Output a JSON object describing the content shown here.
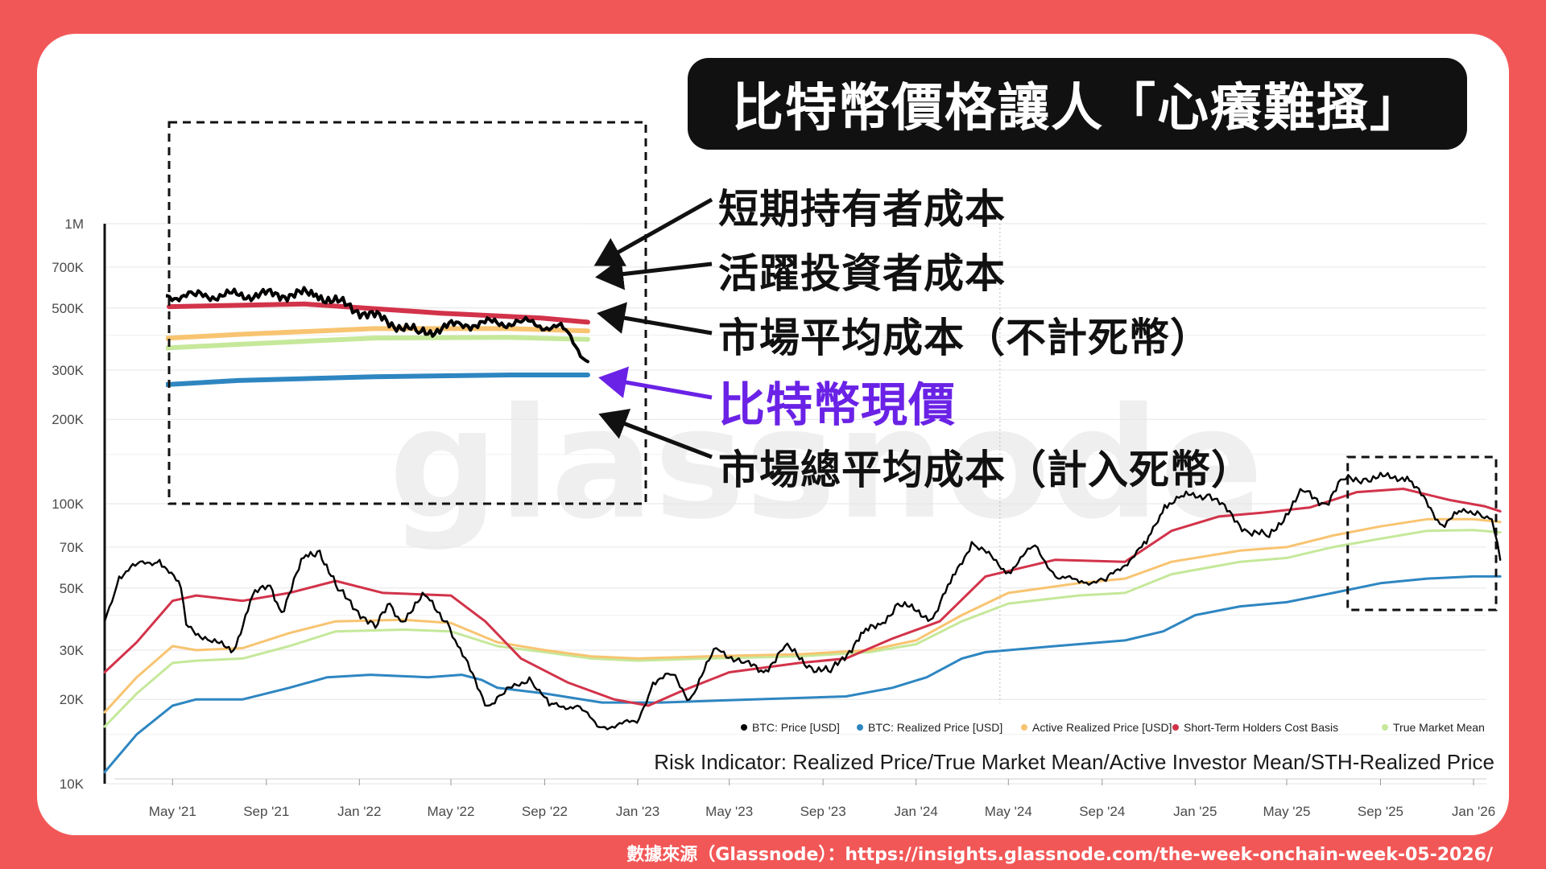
{
  "title": "比特幣價格讓人「心癢難搔」",
  "footer": "數據來源（Glassnode）：https://insights.glassnode.com/the-week-onchain-week-05-2026/",
  "annotations": {
    "sth": "短期持有者成本",
    "active": "活躍投資者成本",
    "true_mean": "市場平均成本（不計死幣）",
    "price": "比特幣現價",
    "realized": "市場總平均成本（計入死幣）"
  },
  "colors": {
    "background": "#f25757",
    "price": "#000000",
    "realized": "#2e86c1",
    "active": "#f8c471",
    "sth": "#d2334a",
    "true_mean": "#c5e89a",
    "annotation_highlight": "#6a22e6"
  },
  "chart_data": {
    "type": "line",
    "subtitle": "Risk Indicator: Realized Price/True Market Mean/Active Investor Mean/STH-Realized Price",
    "watermark": "glassnode",
    "y_scale": "log",
    "ylim": [
      10000,
      1000000
    ],
    "y_ticks": [
      {
        "value": 1000000,
        "label": "1M"
      },
      {
        "value": 700000,
        "label": "700K"
      },
      {
        "value": 500000,
        "label": "500K"
      },
      {
        "value": 300000,
        "label": "300K"
      },
      {
        "value": 200000,
        "label": "200K"
      },
      {
        "value": 100000,
        "label": "100K"
      },
      {
        "value": 70000,
        "label": "70K"
      },
      {
        "value": 50000,
        "label": "50K"
      },
      {
        "value": 30000,
        "label": "30K"
      },
      {
        "value": 20000,
        "label": "20K"
      },
      {
        "value": 10000,
        "label": "10K"
      }
    ],
    "xlim": [
      "2021-02-01",
      "2026-02-08"
    ],
    "x_ticks": [
      {
        "date": "2021-05-01",
        "label": "May '21"
      },
      {
        "date": "2021-09-01",
        "label": "Sep '21"
      },
      {
        "date": "2022-01-01",
        "label": "Jan '22"
      },
      {
        "date": "2022-05-01",
        "label": "May '22"
      },
      {
        "date": "2022-09-01",
        "label": "Sep '22"
      },
      {
        "date": "2023-01-01",
        "label": "Jan '23"
      },
      {
        "date": "2023-05-01",
        "label": "May '23"
      },
      {
        "date": "2023-09-01",
        "label": "Sep '23"
      },
      {
        "date": "2024-01-01",
        "label": "Jan '24"
      },
      {
        "date": "2024-05-01",
        "label": "May '24"
      },
      {
        "date": "2024-09-01",
        "label": "Sep '24"
      },
      {
        "date": "2025-01-01",
        "label": "Jan '25"
      },
      {
        "date": "2025-05-01",
        "label": "May '25"
      },
      {
        "date": "2025-09-01",
        "label": "Sep '25"
      },
      {
        "date": "2026-01-01",
        "label": "Jan '26"
      }
    ],
    "legend_position": "bottom-right",
    "series": [
      {
        "key": "price",
        "name": "BTC: Price [USD]",
        "color": "#000000",
        "points": [
          [
            "2021-02-01",
            38000
          ],
          [
            "2021-02-20",
            55000
          ],
          [
            "2021-03-13",
            60000
          ],
          [
            "2021-04-14",
            63000
          ],
          [
            "2021-05-12",
            50000
          ],
          [
            "2021-05-19",
            37000
          ],
          [
            "2021-06-22",
            32000
          ],
          [
            "2021-07-20",
            30000
          ],
          [
            "2021-08-14",
            47000
          ],
          [
            "2021-09-06",
            51000
          ],
          [
            "2021-09-21",
            41000
          ],
          [
            "2021-10-20",
            64000
          ],
          [
            "2021-11-10",
            68000
          ],
          [
            "2021-12-04",
            49000
          ],
          [
            "2022-01-22",
            36000
          ],
          [
            "2022-02-10",
            44000
          ],
          [
            "2022-02-24",
            38000
          ],
          [
            "2022-03-28",
            47000
          ],
          [
            "2022-04-26",
            38000
          ],
          [
            "2022-05-10",
            31000
          ],
          [
            "2022-06-18",
            19000
          ],
          [
            "2022-07-10",
            21000
          ],
          [
            "2022-08-12",
            24000
          ],
          [
            "2022-09-07",
            19000
          ],
          [
            "2022-10-14",
            19000
          ],
          [
            "2022-11-09",
            16000
          ],
          [
            "2022-12-31",
            16500
          ],
          [
            "2023-01-21",
            23000
          ],
          [
            "2023-02-16",
            24500
          ],
          [
            "2023-03-10",
            20000
          ],
          [
            "2023-04-14",
            30500
          ],
          [
            "2023-05-20",
            27000
          ],
          [
            "2023-06-15",
            25000
          ],
          [
            "2023-07-13",
            31000
          ],
          [
            "2023-08-17",
            26000
          ],
          [
            "2023-09-11",
            25000
          ],
          [
            "2023-10-24",
            34500
          ],
          [
            "2023-11-15",
            37000
          ],
          [
            "2023-12-08",
            44000
          ],
          [
            "2024-01-23",
            39000
          ],
          [
            "2024-02-15",
            52000
          ],
          [
            "2024-03-14",
            73000
          ],
          [
            "2024-05-01",
            57000
          ],
          [
            "2024-06-05",
            71000
          ],
          [
            "2024-07-05",
            54000
          ],
          [
            "2024-08-05",
            53000
          ],
          [
            "2024-09-06",
            53000
          ],
          [
            "2024-10-29",
            72000
          ],
          [
            "2024-11-22",
            99000
          ],
          [
            "2024-12-17",
            106000
          ],
          [
            "2025-01-20",
            108000
          ],
          [
            "2025-03-10",
            80000
          ],
          [
            "2025-04-08",
            76000
          ],
          [
            "2025-05-22",
            111000
          ],
          [
            "2025-06-22",
            100000
          ],
          [
            "2025-07-14",
            122000
          ],
          [
            "2025-08-13",
            123000
          ],
          [
            "2025-10-06",
            125000
          ],
          [
            "2025-11-21",
            84000
          ],
          [
            "2025-12-10",
            92000
          ],
          [
            "2026-01-06",
            94000
          ],
          [
            "2026-01-25",
            88000
          ],
          [
            "2026-02-05",
            63000
          ]
        ]
      },
      {
        "key": "realized",
        "name": "BTC: Realized Price [USD]",
        "color": "#2e86c1",
        "points": [
          [
            "2021-02-01",
            11000
          ],
          [
            "2021-03-15",
            15000
          ],
          [
            "2021-05-01",
            19000
          ],
          [
            "2021-06-01",
            20000
          ],
          [
            "2021-08-01",
            20000
          ],
          [
            "2021-10-01",
            22000
          ],
          [
            "2021-11-20",
            24000
          ],
          [
            "2022-01-15",
            24500
          ],
          [
            "2022-04-01",
            24000
          ],
          [
            "2022-05-15",
            24500
          ],
          [
            "2022-06-10",
            23500
          ],
          [
            "2022-07-01",
            22000
          ],
          [
            "2022-09-01",
            21000
          ],
          [
            "2022-11-15",
            19500
          ],
          [
            "2023-02-01",
            19500
          ],
          [
            "2023-06-01",
            20000
          ],
          [
            "2023-10-01",
            20500
          ],
          [
            "2023-12-01",
            22000
          ],
          [
            "2024-01-15",
            24000
          ],
          [
            "2024-03-01",
            28000
          ],
          [
            "2024-04-01",
            29500
          ],
          [
            "2024-07-01",
            31000
          ],
          [
            "2024-10-01",
            32500
          ],
          [
            "2024-11-20",
            35000
          ],
          [
            "2025-01-01",
            40000
          ],
          [
            "2025-03-01",
            43000
          ],
          [
            "2025-05-01",
            44500
          ],
          [
            "2025-07-01",
            48000
          ],
          [
            "2025-09-01",
            52000
          ],
          [
            "2025-11-01",
            54000
          ],
          [
            "2026-01-01",
            55000
          ],
          [
            "2026-02-05",
            55000
          ]
        ]
      },
      {
        "key": "active",
        "name": "Active Realized Price [USD]",
        "color": "#f8c471",
        "points": [
          [
            "2021-02-01",
            18000
          ],
          [
            "2021-03-15",
            24000
          ],
          [
            "2021-05-01",
            31000
          ],
          [
            "2021-06-01",
            30000
          ],
          [
            "2021-08-01",
            30500
          ],
          [
            "2021-10-01",
            34500
          ],
          [
            "2021-12-01",
            38000
          ],
          [
            "2022-03-01",
            38500
          ],
          [
            "2022-05-01",
            37500
          ],
          [
            "2022-07-01",
            32000
          ],
          [
            "2022-09-01",
            30000
          ],
          [
            "2022-11-01",
            28500
          ],
          [
            "2023-01-01",
            28000
          ],
          [
            "2023-04-01",
            28500
          ],
          [
            "2023-08-01",
            29000
          ],
          [
            "2023-11-01",
            30000
          ],
          [
            "2024-01-01",
            32500
          ],
          [
            "2024-03-01",
            40000
          ],
          [
            "2024-05-01",
            48000
          ],
          [
            "2024-08-01",
            52000
          ],
          [
            "2024-10-01",
            54000
          ],
          [
            "2024-12-01",
            62000
          ],
          [
            "2025-03-01",
            68000
          ],
          [
            "2025-05-01",
            70000
          ],
          [
            "2025-07-01",
            77000
          ],
          [
            "2025-09-01",
            83000
          ],
          [
            "2025-11-01",
            88000
          ],
          [
            "2026-01-01",
            88000
          ],
          [
            "2026-02-05",
            86000
          ]
        ]
      },
      {
        "key": "sth",
        "name": "Short-Term Holders Cost Basis",
        "color": "#d2334a",
        "points": [
          [
            "2021-02-01",
            25000
          ],
          [
            "2021-03-15",
            32000
          ],
          [
            "2021-05-01",
            45000
          ],
          [
            "2021-06-01",
            47000
          ],
          [
            "2021-08-01",
            45000
          ],
          [
            "2021-10-01",
            48000
          ],
          [
            "2021-12-01",
            53000
          ],
          [
            "2022-02-01",
            48000
          ],
          [
            "2022-05-01",
            47000
          ],
          [
            "2022-06-15",
            38000
          ],
          [
            "2022-08-01",
            28000
          ],
          [
            "2022-10-01",
            23000
          ],
          [
            "2022-12-01",
            20000
          ],
          [
            "2023-01-15",
            19000
          ],
          [
            "2023-03-01",
            21500
          ],
          [
            "2023-05-01",
            25000
          ],
          [
            "2023-08-01",
            27000
          ],
          [
            "2023-10-01",
            28000
          ],
          [
            "2023-12-01",
            33000
          ],
          [
            "2024-02-01",
            38000
          ],
          [
            "2024-04-01",
            55000
          ],
          [
            "2024-07-01",
            63000
          ],
          [
            "2024-10-01",
            62000
          ],
          [
            "2024-12-01",
            80000
          ],
          [
            "2025-02-01",
            90000
          ],
          [
            "2025-04-01",
            93000
          ],
          [
            "2025-06-01",
            97000
          ],
          [
            "2025-08-01",
            110000
          ],
          [
            "2025-10-01",
            113000
          ],
          [
            "2025-12-01",
            103000
          ],
          [
            "2026-01-15",
            98000
          ],
          [
            "2026-02-05",
            94000
          ]
        ]
      },
      {
        "key": "true_mean",
        "name": "True Market Mean",
        "color": "#c5e89a",
        "points": [
          [
            "2021-02-01",
            16000
          ],
          [
            "2021-03-15",
            21000
          ],
          [
            "2021-05-01",
            27000
          ],
          [
            "2021-06-01",
            27500
          ],
          [
            "2021-08-01",
            28000
          ],
          [
            "2021-10-01",
            31000
          ],
          [
            "2021-12-01",
            35000
          ],
          [
            "2022-03-01",
            35500
          ],
          [
            "2022-05-01",
            35000
          ],
          [
            "2022-07-01",
            31000
          ],
          [
            "2022-09-01",
            29500
          ],
          [
            "2022-11-01",
            28000
          ],
          [
            "2023-01-01",
            27500
          ],
          [
            "2023-04-01",
            28000
          ],
          [
            "2023-08-01",
            28500
          ],
          [
            "2023-11-01",
            29500
          ],
          [
            "2024-01-01",
            31500
          ],
          [
            "2024-03-01",
            38000
          ],
          [
            "2024-05-01",
            44000
          ],
          [
            "2024-08-01",
            47000
          ],
          [
            "2024-10-01",
            48000
          ],
          [
            "2024-12-01",
            56000
          ],
          [
            "2025-03-01",
            62000
          ],
          [
            "2025-05-01",
            64000
          ],
          [
            "2025-07-01",
            70000
          ],
          [
            "2025-09-01",
            75000
          ],
          [
            "2025-11-01",
            80000
          ],
          [
            "2026-01-01",
            80500
          ],
          [
            "2026-02-05",
            79000
          ]
        ]
      }
    ]
  }
}
